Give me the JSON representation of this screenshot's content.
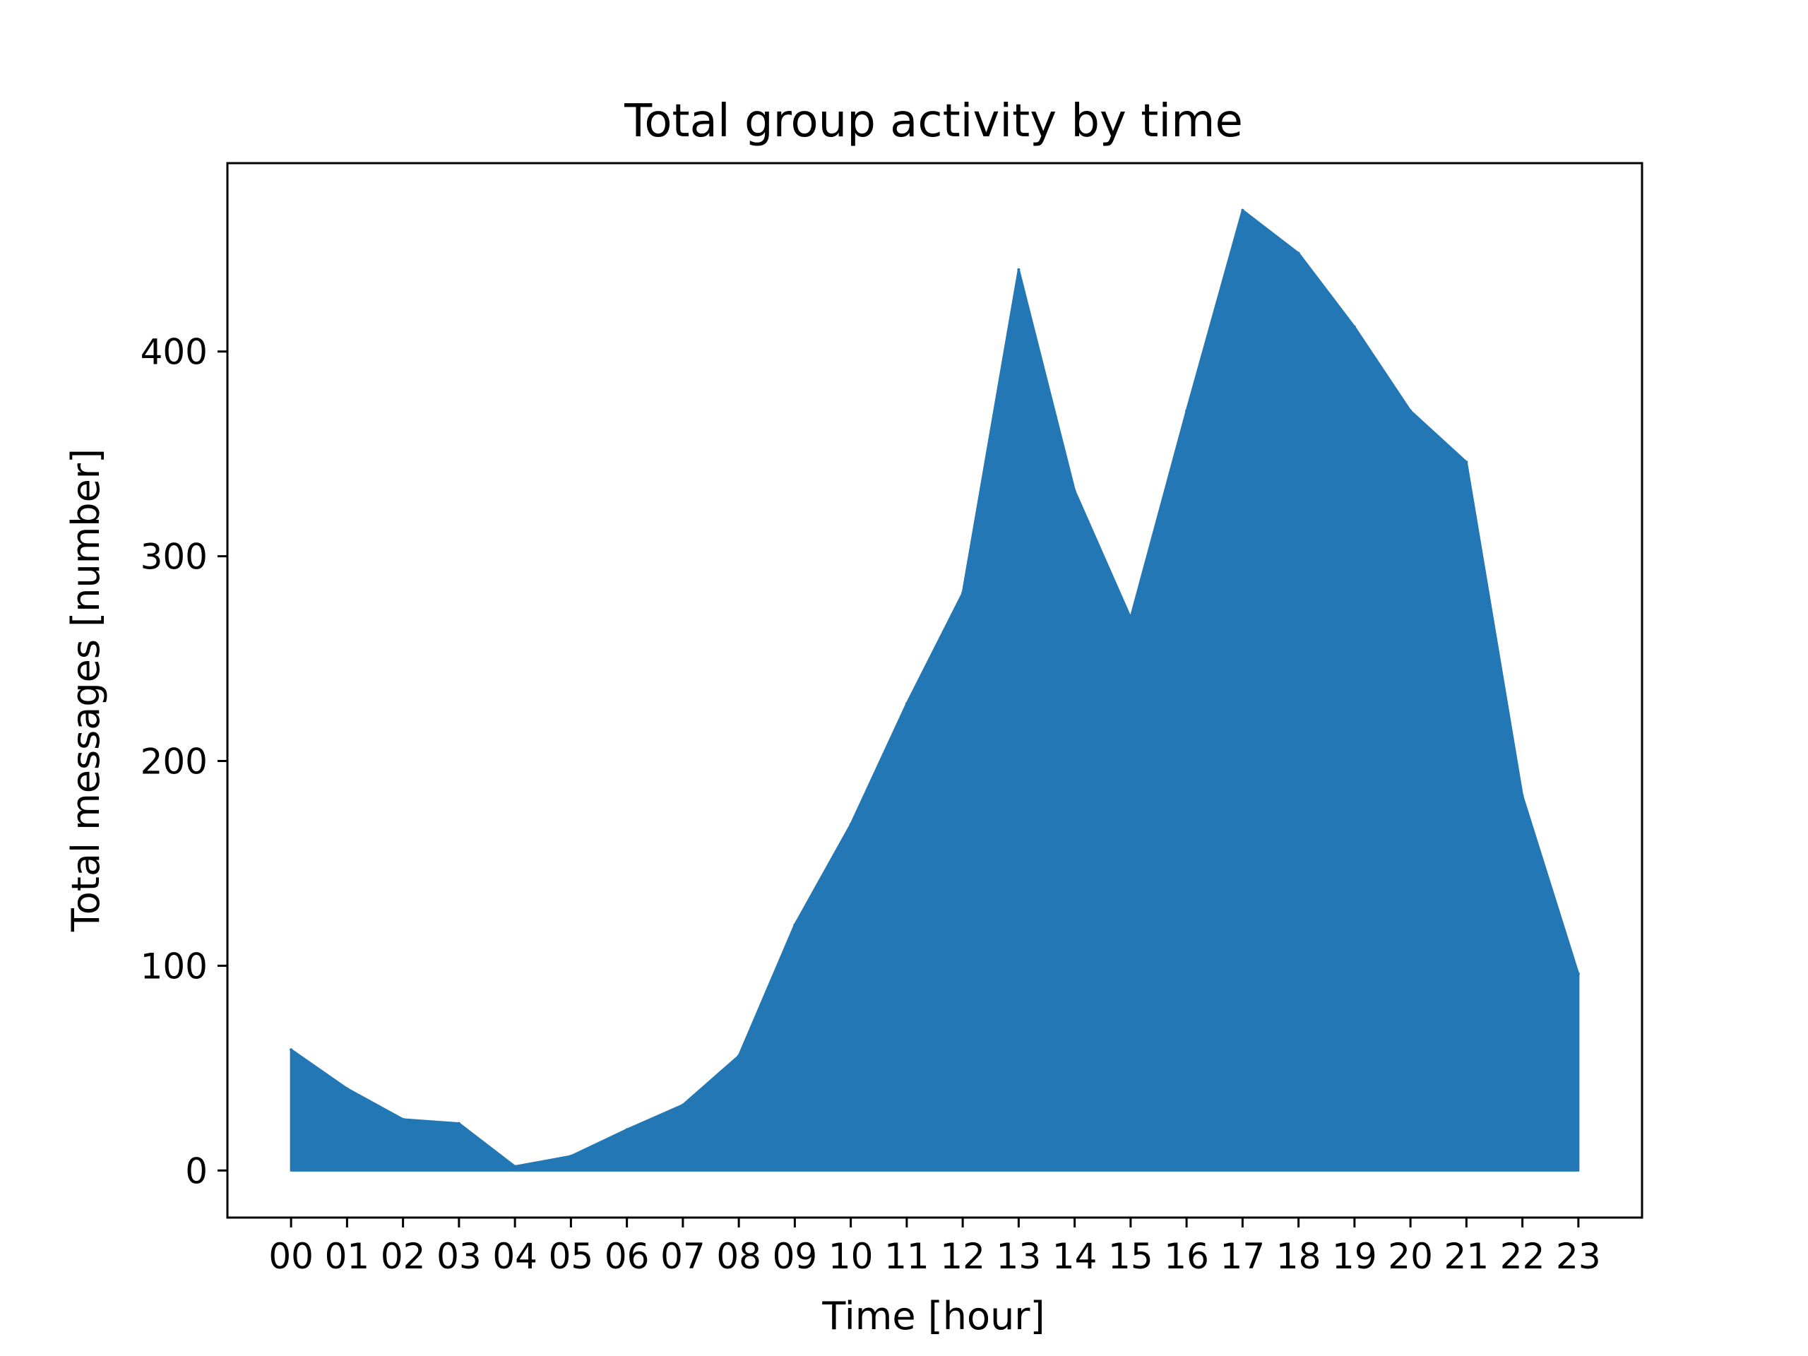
{
  "chart_data": {
    "type": "area",
    "title": "Total group activity by time",
    "xlabel": "Time [hour]",
    "ylabel": "Total messages [number]",
    "categories": [
      "00",
      "01",
      "02",
      "03",
      "04",
      "05",
      "06",
      "07",
      "08",
      "09",
      "10",
      "11",
      "12",
      "13",
      "14",
      "15",
      "16",
      "17",
      "18",
      "19",
      "20",
      "21",
      "22",
      "23"
    ],
    "series": [
      {
        "values": [
          59,
          40,
          25,
          23,
          2,
          7,
          20,
          32,
          56,
          120,
          169,
          228,
          282,
          440,
          332,
          270,
          371,
          469,
          448,
          412,
          371,
          346,
          183,
          96
        ]
      }
    ],
    "ylim": [
      -23,
      492
    ],
    "yticks": [
      0,
      100,
      200,
      300,
      400
    ],
    "grid": false,
    "legend": "none",
    "colors": {
      "fill": "#2277b4",
      "axes": "#000000",
      "background": "#ffffff"
    }
  }
}
